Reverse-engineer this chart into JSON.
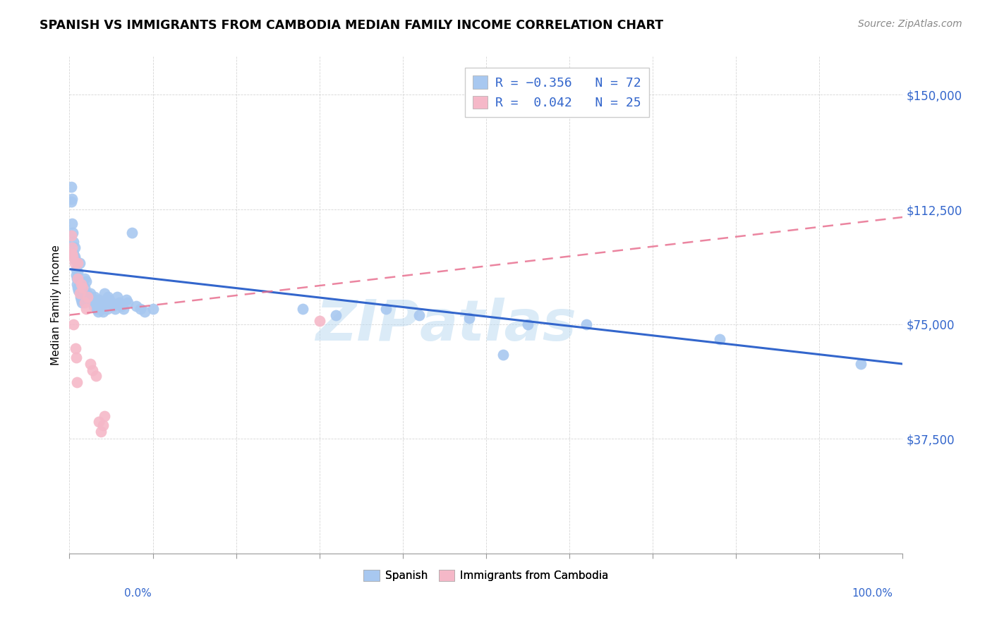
{
  "title": "SPANISH VS IMMIGRANTS FROM CAMBODIA MEDIAN FAMILY INCOME CORRELATION CHART",
  "source": "Source: ZipAtlas.com",
  "ylabel": "Median Family Income",
  "xlim": [
    0.0,
    1.0
  ],
  "ylim": [
    0,
    162500
  ],
  "blue_color": "#A8C8F0",
  "pink_color": "#F5B8C8",
  "blue_line_color": "#3366CC",
  "pink_line_color": "#E87090",
  "spanish_x": [
    0.002,
    0.002,
    0.003,
    0.003,
    0.004,
    0.005,
    0.005,
    0.006,
    0.006,
    0.007,
    0.008,
    0.008,
    0.009,
    0.009,
    0.01,
    0.01,
    0.011,
    0.012,
    0.013,
    0.014,
    0.015,
    0.016,
    0.017,
    0.018,
    0.018,
    0.02,
    0.021,
    0.022,
    0.025,
    0.026,
    0.027,
    0.028,
    0.029,
    0.03,
    0.031,
    0.032,
    0.033,
    0.034,
    0.035,
    0.036,
    0.038,
    0.039,
    0.04,
    0.042,
    0.044,
    0.045,
    0.046,
    0.048,
    0.05,
    0.052,
    0.055,
    0.057,
    0.06,
    0.062,
    0.065,
    0.068,
    0.07,
    0.075,
    0.08,
    0.085,
    0.09,
    0.1,
    0.28,
    0.32,
    0.38,
    0.42,
    0.48,
    0.52,
    0.55,
    0.62,
    0.78,
    0.95
  ],
  "spanish_y": [
    120000,
    115000,
    108000,
    116000,
    105000,
    102000,
    98000,
    100000,
    97000,
    96000,
    93000,
    91000,
    90000,
    88000,
    92000,
    87000,
    86000,
    95000,
    84000,
    83000,
    82000,
    88000,
    86000,
    90000,
    87000,
    89000,
    85000,
    84000,
    85000,
    84000,
    83000,
    82000,
    81000,
    84000,
    83000,
    82000,
    80000,
    79000,
    83000,
    82000,
    81000,
    80000,
    79000,
    85000,
    82000,
    80000,
    84000,
    83000,
    82000,
    81000,
    80000,
    84000,
    82000,
    81000,
    80000,
    83000,
    82000,
    105000,
    81000,
    80000,
    79000,
    80000,
    80000,
    78000,
    80000,
    78000,
    77000,
    65000,
    75000,
    75000,
    70000,
    62000
  ],
  "cambodia_x": [
    0.002,
    0.003,
    0.003,
    0.004,
    0.005,
    0.006,
    0.007,
    0.008,
    0.009,
    0.01,
    0.01,
    0.012,
    0.014,
    0.016,
    0.018,
    0.02,
    0.022,
    0.025,
    0.028,
    0.032,
    0.035,
    0.038,
    0.04,
    0.042,
    0.3
  ],
  "cambodia_y": [
    104000,
    100000,
    98000,
    97000,
    75000,
    95000,
    67000,
    64000,
    56000,
    95000,
    90000,
    85000,
    88000,
    87000,
    82000,
    80000,
    84000,
    62000,
    60000,
    58000,
    43000,
    40000,
    42000,
    45000,
    76000
  ],
  "spanish_line_x": [
    0.0,
    1.0
  ],
  "spanish_line_y": [
    93000,
    62000
  ],
  "cambodia_line_x": [
    0.0,
    1.0
  ],
  "cambodia_line_y": [
    78000,
    110000
  ]
}
